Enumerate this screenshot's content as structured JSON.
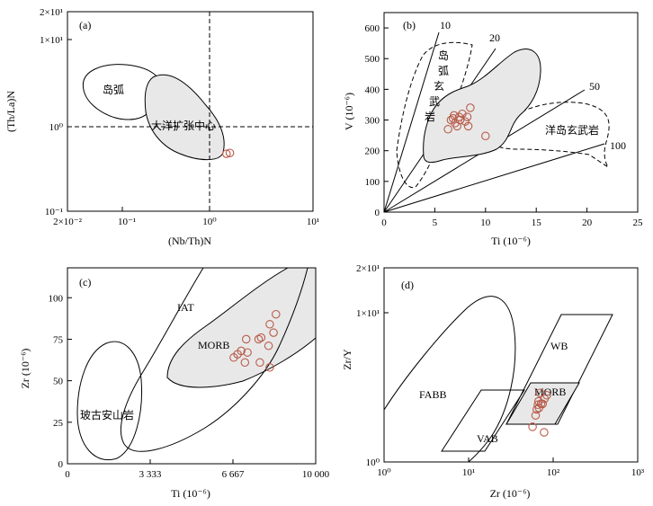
{
  "chart_data": [
    {
      "type": "scatter",
      "panel_label": "(a)",
      "xlabel": "(Nb/Th)N",
      "ylabel": "(Th/La)N",
      "xscale": "log",
      "yscale": "log",
      "xlim": [
        0.02,
        10
      ],
      "ylim": [
        0.1,
        20
      ],
      "x_ticks": [
        "2×10⁻²",
        "10⁻¹",
        "10⁰",
        "10¹"
      ],
      "y_ticks": [
        "10⁻¹",
        "10⁰",
        "1×10¹",
        "2×10¹"
      ],
      "field_labels": [
        "岛弧",
        "大洋扩张中心"
      ],
      "reference_lines": {
        "vertical_x": 1,
        "horizontal_y": 1
      },
      "points": [
        {
          "x": 1.12,
          "y": 0.46
        },
        {
          "x": 1.22,
          "y": 0.47
        }
      ]
    },
    {
      "type": "scatter",
      "panel_label": "(b)",
      "xlabel": "Ti (10⁻⁶)",
      "ylabel": "V (10⁻⁶)",
      "xlim": [
        0,
        25
      ],
      "ylim": [
        0,
        650
      ],
      "x_ticks": [
        "0",
        "5",
        "10",
        "15",
        "20",
        "25"
      ],
      "y_ticks": [
        "0",
        "100",
        "200",
        "300",
        "400",
        "500",
        "600"
      ],
      "ratio_lines": [
        "10",
        "20",
        "50",
        "100"
      ],
      "field_labels": [
        "岛",
        "弧",
        "玄",
        "武",
        "岩",
        "洋岛玄武岩"
      ],
      "points": [
        {
          "x": 6.3,
          "y": 270
        },
        {
          "x": 6.6,
          "y": 300
        },
        {
          "x": 6.9,
          "y": 315
        },
        {
          "x": 7.0,
          "y": 290
        },
        {
          "x": 7.2,
          "y": 280
        },
        {
          "x": 7.5,
          "y": 300
        },
        {
          "x": 7.7,
          "y": 320
        },
        {
          "x": 8.0,
          "y": 295
        },
        {
          "x": 8.2,
          "y": 310
        },
        {
          "x": 8.3,
          "y": 280
        },
        {
          "x": 8.5,
          "y": 340
        },
        {
          "x": 10.0,
          "y": 248
        },
        {
          "x": 6.8,
          "y": 305
        },
        {
          "x": 7.4,
          "y": 310
        }
      ]
    },
    {
      "type": "scatter",
      "panel_label": "(c)",
      "xlabel": "Ti (10⁻⁶)",
      "ylabel": "Zr (10⁻⁶)",
      "xlim": [
        0,
        10000
      ],
      "ylim": [
        0,
        118
      ],
      "x_ticks": [
        "0",
        "3 333",
        "6 667",
        "10 000"
      ],
      "y_ticks": [
        "0",
        "25",
        "50",
        "75",
        "100"
      ],
      "field_labels": [
        "IAT",
        "MORB",
        "玻古安山岩"
      ],
      "points": [
        {
          "x": 6700,
          "y": 64
        },
        {
          "x": 6850,
          "y": 66
        },
        {
          "x": 7000,
          "y": 68
        },
        {
          "x": 7150,
          "y": 61
        },
        {
          "x": 7200,
          "y": 75
        },
        {
          "x": 7250,
          "y": 67
        },
        {
          "x": 7700,
          "y": 75
        },
        {
          "x": 7800,
          "y": 76
        },
        {
          "x": 7750,
          "y": 61
        },
        {
          "x": 8100,
          "y": 71
        },
        {
          "x": 8150,
          "y": 84
        },
        {
          "x": 8300,
          "y": 79
        },
        {
          "x": 8400,
          "y": 90
        },
        {
          "x": 8150,
          "y": 58
        }
      ]
    },
    {
      "type": "scatter",
      "panel_label": "(d)",
      "xlabel": "Zr (10⁻⁶)",
      "ylabel": "Zr/Y",
      "xscale": "log",
      "yscale": "log",
      "xlim": [
        1,
        1000
      ],
      "ylim": [
        1,
        20
      ],
      "x_ticks": [
        "10⁰",
        "10¹",
        "10²",
        "10³"
      ],
      "y_ticks": [
        "10⁰",
        "1×10¹",
        "2×10¹"
      ],
      "field_labels": [
        "FABB",
        "WB",
        "MORB",
        "VAB"
      ],
      "points": [
        {
          "x": 57,
          "y": 1.72
        },
        {
          "x": 62,
          "y": 2.05
        },
        {
          "x": 64,
          "y": 2.25
        },
        {
          "x": 66,
          "y": 2.42
        },
        {
          "x": 68,
          "y": 2.3
        },
        {
          "x": 70,
          "y": 2.9
        },
        {
          "x": 72,
          "y": 2.46
        },
        {
          "x": 75,
          "y": 2.45
        },
        {
          "x": 78,
          "y": 1.58
        },
        {
          "x": 79,
          "y": 2.65
        },
        {
          "x": 84,
          "y": 2.8
        },
        {
          "x": 67,
          "y": 2.55
        }
      ]
    }
  ]
}
